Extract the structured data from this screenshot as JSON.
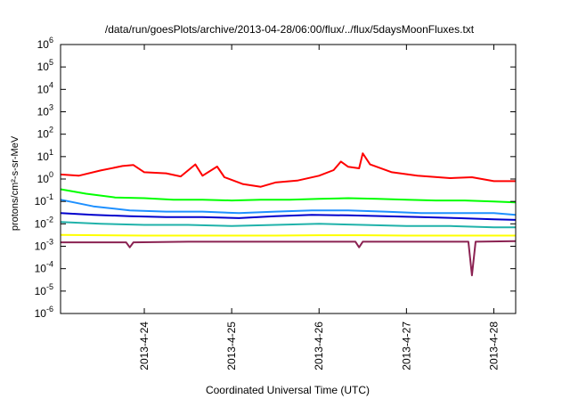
{
  "chart_data": {
    "type": "line",
    "title": "/data/run/goesPlots/archive/2013-04-28/06:00/flux/../flux/5daysMoonFluxes.txt",
    "xlabel": "Coordinated Universal Time (UTC)",
    "ylabel": "protons/cm²-s-sr-MeV",
    "y_scale": "log",
    "ylim": [
      1e-06,
      1000000.0
    ],
    "xlim": [
      "2013-04-23 01:00",
      "2013-04-28 06:00"
    ],
    "grid": false,
    "legend": "none",
    "y_ticks": [
      {
        "value": 1e-06,
        "base": "10",
        "exp": "-6"
      },
      {
        "value": 1e-05,
        "base": "10",
        "exp": "-5"
      },
      {
        "value": 0.0001,
        "base": "10",
        "exp": "-4"
      },
      {
        "value": 0.001,
        "base": "10",
        "exp": "-3"
      },
      {
        "value": 0.01,
        "base": "10",
        "exp": "-2"
      },
      {
        "value": 0.1,
        "base": "10",
        "exp": "-1"
      },
      {
        "value": 1,
        "base": "10",
        "exp": "0"
      },
      {
        "value": 10,
        "base": "10",
        "exp": "1"
      },
      {
        "value": 100,
        "base": "10",
        "exp": "2"
      },
      {
        "value": 1000,
        "base": "10",
        "exp": "3"
      },
      {
        "value": 10000,
        "base": "10",
        "exp": "4"
      },
      {
        "value": 100000,
        "base": "10",
        "exp": "5"
      },
      {
        "value": 1000000,
        "base": "10",
        "exp": "6"
      }
    ],
    "x_ticks": [
      "2013-4-24",
      "2013-4-25",
      "2013-4-26",
      "2013-4-27",
      "2013-4-28"
    ],
    "series": [
      {
        "color": "#ff0000",
        "points": [
          [
            "2013-04-23 01:00",
            1.6
          ],
          [
            "2013-04-23 06:00",
            1.4
          ],
          [
            "2013-04-23 12:00",
            2.4
          ],
          [
            "2013-04-23 18:00",
            3.8
          ],
          [
            "2013-04-23 21:00",
            4.2
          ],
          [
            "2013-04-24 00:00",
            2.0
          ],
          [
            "2013-04-24 06:00",
            1.8
          ],
          [
            "2013-04-24 10:00",
            1.3
          ],
          [
            "2013-04-24 14:00",
            4.5
          ],
          [
            "2013-04-24 16:00",
            1.4
          ],
          [
            "2013-04-24 20:00",
            3.6
          ],
          [
            "2013-04-24 22:00",
            1.2
          ],
          [
            "2013-04-25 03:00",
            0.6
          ],
          [
            "2013-04-25 08:00",
            0.45
          ],
          [
            "2013-04-25 12:00",
            0.7
          ],
          [
            "2013-04-25 18:00",
            0.85
          ],
          [
            "2013-04-26 00:00",
            1.4
          ],
          [
            "2013-04-26 04:00",
            2.5
          ],
          [
            "2013-04-26 06:00",
            6.0
          ],
          [
            "2013-04-26 08:00",
            3.5
          ],
          [
            "2013-04-26 11:00",
            3.0
          ],
          [
            "2013-04-26 12:00",
            14.0
          ],
          [
            "2013-04-26 14:00",
            4.5
          ],
          [
            "2013-04-26 20:00",
            2.0
          ],
          [
            "2013-04-27 03:00",
            1.4
          ],
          [
            "2013-04-27 12:00",
            1.1
          ],
          [
            "2013-04-27 18:00",
            1.2
          ],
          [
            "2013-04-28 00:00",
            0.8
          ],
          [
            "2013-04-28 06:00",
            0.8
          ]
        ]
      },
      {
        "color": "#00ff00",
        "points": [
          [
            "2013-04-23 01:00",
            0.35
          ],
          [
            "2013-04-23 08:00",
            0.22
          ],
          [
            "2013-04-23 16:00",
            0.15
          ],
          [
            "2013-04-24 00:00",
            0.14
          ],
          [
            "2013-04-24 08:00",
            0.12
          ],
          [
            "2013-04-24 16:00",
            0.12
          ],
          [
            "2013-04-25 00:00",
            0.11
          ],
          [
            "2013-04-25 08:00",
            0.12
          ],
          [
            "2013-04-25 16:00",
            0.12
          ],
          [
            "2013-04-26 00:00",
            0.13
          ],
          [
            "2013-04-26 08:00",
            0.14
          ],
          [
            "2013-04-26 16:00",
            0.13
          ],
          [
            "2013-04-27 00:00",
            0.12
          ],
          [
            "2013-04-27 08:00",
            0.11
          ],
          [
            "2013-04-27 16:00",
            0.11
          ],
          [
            "2013-04-28 00:00",
            0.1
          ],
          [
            "2013-04-28 06:00",
            0.09
          ]
        ]
      },
      {
        "color": "#1e90ff",
        "points": [
          [
            "2013-04-23 01:00",
            0.12
          ],
          [
            "2013-04-23 10:00",
            0.06
          ],
          [
            "2013-04-23 20:00",
            0.04
          ],
          [
            "2013-04-24 06:00",
            0.035
          ],
          [
            "2013-04-24 16:00",
            0.035
          ],
          [
            "2013-04-25 02:00",
            0.03
          ],
          [
            "2013-04-25 12:00",
            0.035
          ],
          [
            "2013-04-25 22:00",
            0.04
          ],
          [
            "2013-04-26 08:00",
            0.04
          ],
          [
            "2013-04-26 18:00",
            0.035
          ],
          [
            "2013-04-27 04:00",
            0.03
          ],
          [
            "2013-04-27 14:00",
            0.03
          ],
          [
            "2013-04-28 00:00",
            0.03
          ],
          [
            "2013-04-28 06:00",
            0.025
          ]
        ]
      },
      {
        "color": "#0000cd",
        "points": [
          [
            "2013-04-23 01:00",
            0.03
          ],
          [
            "2013-04-23 10:00",
            0.025
          ],
          [
            "2013-04-23 20:00",
            0.022
          ],
          [
            "2013-04-24 06:00",
            0.02
          ],
          [
            "2013-04-24 16:00",
            0.02
          ],
          [
            "2013-04-25 02:00",
            0.018
          ],
          [
            "2013-04-25 12:00",
            0.022
          ],
          [
            "2013-04-25 22:00",
            0.025
          ],
          [
            "2013-04-26 08:00",
            0.024
          ],
          [
            "2013-04-26 18:00",
            0.022
          ],
          [
            "2013-04-27 04:00",
            0.02
          ],
          [
            "2013-04-27 14:00",
            0.018
          ],
          [
            "2013-04-28 00:00",
            0.016
          ],
          [
            "2013-04-28 06:00",
            0.015
          ]
        ]
      },
      {
        "color": "#20b2aa",
        "points": [
          [
            "2013-04-23 01:00",
            0.012
          ],
          [
            "2013-04-23 12:00",
            0.01
          ],
          [
            "2013-04-24 00:00",
            0.009
          ],
          [
            "2013-04-24 12:00",
            0.009
          ],
          [
            "2013-04-25 00:00",
            0.008
          ],
          [
            "2013-04-25 12:00",
            0.009
          ],
          [
            "2013-04-26 00:00",
            0.01
          ],
          [
            "2013-04-26 12:00",
            0.009
          ],
          [
            "2013-04-27 00:00",
            0.008
          ],
          [
            "2013-04-27 12:00",
            0.008
          ],
          [
            "2013-04-28 00:00",
            0.007
          ],
          [
            "2013-04-28 06:00",
            0.007
          ]
        ]
      },
      {
        "color": "#ffff00",
        "points": [
          [
            "2013-04-23 01:00",
            0.0032
          ],
          [
            "2013-04-23 12:00",
            0.0031
          ],
          [
            "2013-04-24 00:00",
            0.003
          ],
          [
            "2013-04-24 12:00",
            0.003
          ],
          [
            "2013-04-25 00:00",
            0.003
          ],
          [
            "2013-04-25 12:00",
            0.003
          ],
          [
            "2013-04-26 00:00",
            0.0031
          ],
          [
            "2013-04-26 12:00",
            0.0031
          ],
          [
            "2013-04-27 00:00",
            0.003
          ],
          [
            "2013-04-27 12:00",
            0.003
          ],
          [
            "2013-04-28 00:00",
            0.003
          ],
          [
            "2013-04-28 06:00",
            0.003
          ]
        ]
      },
      {
        "color": "#8b2252",
        "points": [
          [
            "2013-04-23 01:00",
            0.0015
          ],
          [
            "2013-04-23 12:00",
            0.0015
          ],
          [
            "2013-04-23 19:00",
            0.0015
          ],
          [
            "2013-04-23 20:00",
            0.0009
          ],
          [
            "2013-04-23 21:00",
            0.0015
          ],
          [
            "2013-04-24 12:00",
            0.0016
          ],
          [
            "2013-04-25 00:00",
            0.0016
          ],
          [
            "2013-04-25 12:00",
            0.0016
          ],
          [
            "2013-04-26 00:00",
            0.0016
          ],
          [
            "2013-04-26 10:00",
            0.0016
          ],
          [
            "2013-04-26 11:00",
            0.0009
          ],
          [
            "2013-04-26 12:00",
            0.0016
          ],
          [
            "2013-04-27 00:00",
            0.0016
          ],
          [
            "2013-04-27 17:00",
            0.0016
          ],
          [
            "2013-04-27 18:00",
            5e-05
          ],
          [
            "2013-04-27 19:00",
            0.0016
          ],
          [
            "2013-04-28 06:00",
            0.0017
          ]
        ]
      }
    ]
  }
}
